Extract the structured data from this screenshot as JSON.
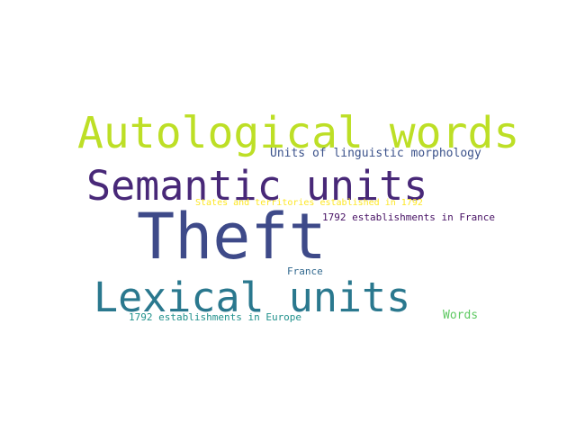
{
  "words": {
    "autological": {
      "text": "Autological words",
      "color": "#bddf26"
    },
    "semantic": {
      "text": "Semantic units",
      "color": "#482878"
    },
    "theft": {
      "text": "Theft",
      "color": "#3e4a89"
    },
    "lexical": {
      "text": "Lexical units",
      "color": "#2a788e"
    },
    "morphology": {
      "text": "Units of linguistic morphology",
      "color": "#3b528b"
    },
    "states": {
      "text": "States and territories established in 1792",
      "color": "#fde725"
    },
    "est_france": {
      "text": "1792 establishments in France",
      "color": "#471164"
    },
    "france": {
      "text": "France",
      "color": "#31688e"
    },
    "est_europe": {
      "text": "1792 establishments in Europe",
      "color": "#21918c"
    },
    "words_label": {
      "text": "Words",
      "color": "#5ec962"
    }
  }
}
